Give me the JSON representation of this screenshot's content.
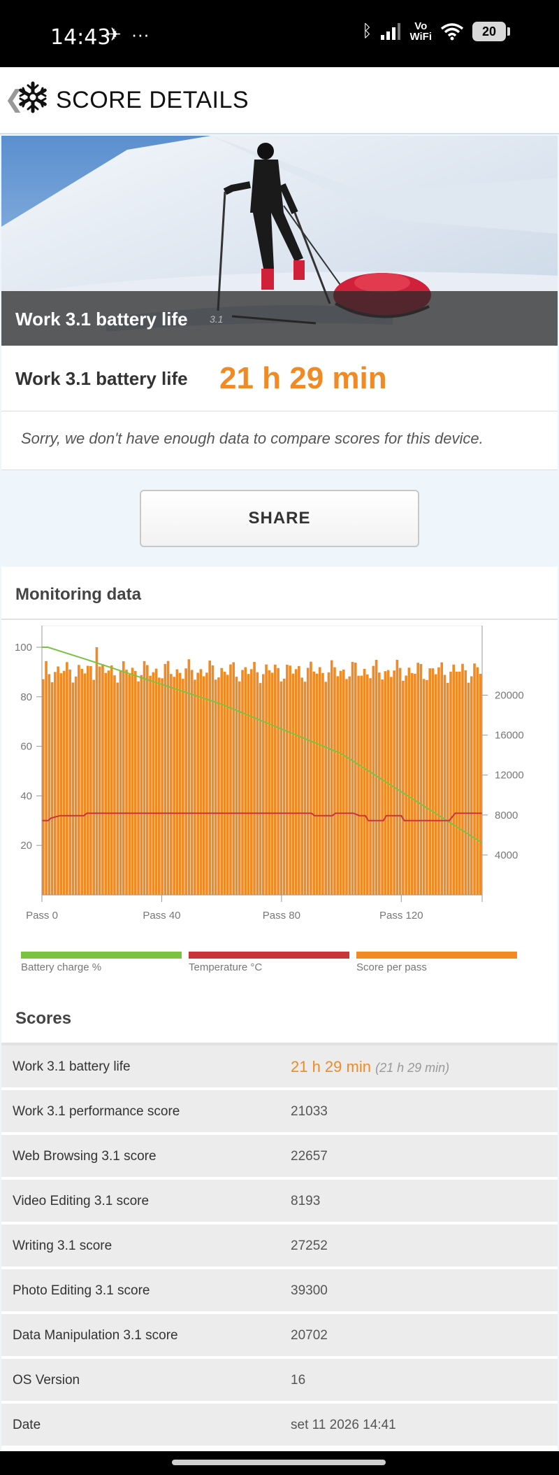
{
  "status_bar": {
    "time": "14:43",
    "vowifi_line1": "Vo",
    "vowifi_line2": "WiFi",
    "battery_level": "20"
  },
  "header": {
    "title": "SCORE DETAILS"
  },
  "hero": {
    "title": "Work 3.1 battery life",
    "version": "3.1"
  },
  "result": {
    "label": "Work 3.1 battery life",
    "value": "21 h 29 min"
  },
  "compare_note": "Sorry, we don't have enough data to compare scores for this device.",
  "share_label": "SHARE",
  "monitoring": {
    "title": "Monitoring data"
  },
  "chart_data": {
    "type": "bar",
    "x_ticks": [
      "Pass 0",
      "Pass 40",
      "Pass 80",
      "Pass 120"
    ],
    "x_tick_values": [
      0,
      40,
      80,
      120
    ],
    "x_range": [
      0,
      147
    ],
    "left_axis": {
      "ticks": [
        "100",
        "80",
        "60",
        "40",
        "20"
      ],
      "tick_values": [
        100,
        80,
        60,
        40,
        20
      ],
      "range": [
        0,
        100
      ]
    },
    "right_axis": {
      "ticks": [
        "20000",
        "16000",
        "12000",
        "8000",
        "4000"
      ],
      "tick_values": [
        20000,
        16000,
        12000,
        8000,
        4000
      ],
      "range": [
        0,
        24800
      ]
    },
    "series": [
      {
        "name": "Battery charge %",
        "axis": "left",
        "type": "line",
        "points": [
          [
            0,
            100
          ],
          [
            2,
            100
          ],
          [
            15,
            95
          ],
          [
            60,
            77
          ],
          [
            100,
            57
          ],
          [
            147,
            21
          ]
        ]
      },
      {
        "name": "Temperature °C",
        "axis": "left",
        "type": "line",
        "points": [
          [
            0,
            30
          ],
          [
            2,
            30
          ],
          [
            3,
            31
          ],
          [
            6,
            32
          ],
          [
            14,
            32
          ],
          [
            15,
            33
          ],
          [
            90,
            33
          ],
          [
            91,
            32
          ],
          [
            97,
            32
          ],
          [
            98,
            33
          ],
          [
            104,
            33
          ],
          [
            106,
            32
          ],
          [
            108,
            32
          ],
          [
            109,
            30
          ],
          [
            114,
            30
          ],
          [
            115,
            32
          ],
          [
            120,
            32
          ],
          [
            121,
            30
          ],
          [
            136,
            30
          ],
          [
            138,
            33
          ],
          [
            147,
            33
          ]
        ]
      },
      {
        "name": "Score per pass",
        "axis": "right",
        "type": "bar",
        "base": 22400,
        "amplitude": 1200,
        "spike_index": 18,
        "spike_value": 24800,
        "first_value": 21600
      }
    ],
    "colors": {
      "battery": "#7cc242",
      "temperature": "#c8343a",
      "score": "#f08a24"
    }
  },
  "legend": [
    {
      "label": "Battery charge %",
      "color": "#7cc242"
    },
    {
      "label": "Temperature °C",
      "color": "#c8343a"
    },
    {
      "label": "Score per pass",
      "color": "#f08a24"
    }
  ],
  "scores": {
    "title": "Scores",
    "rows": [
      {
        "label": "Work 3.1 battery life",
        "value": "21 h 29 min",
        "sub": "(21 h 29 min)"
      },
      {
        "label": "Work 3.1 performance score",
        "value": "21033"
      },
      {
        "label": "Web Browsing 3.1 score",
        "value": "22657"
      },
      {
        "label": "Video Editing 3.1 score",
        "value": "8193"
      },
      {
        "label": "Writing 3.1 score",
        "value": "27252"
      },
      {
        "label": "Photo Editing 3.1 score",
        "value": "39300"
      },
      {
        "label": "Data Manipulation 3.1 score",
        "value": "20702"
      },
      {
        "label": "OS Version",
        "value": "16"
      },
      {
        "label": "Date",
        "value": "set 11 2026 14:41"
      }
    ]
  }
}
